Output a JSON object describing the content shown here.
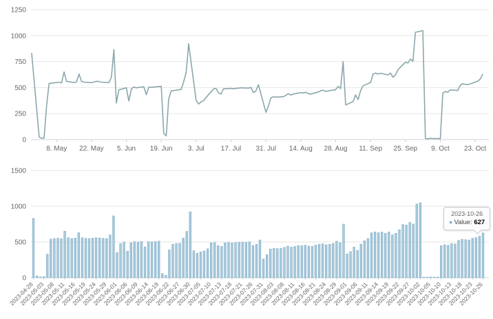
{
  "colors": {
    "series_line": "#8ba7ab",
    "bar_fill": "#a7c9dc",
    "bar_stroke": "#86afc6",
    "grid": "#e6e6e6",
    "axis": "#ccd1d6",
    "label": "#666666",
    "tooltip_border": "#c6ccd2"
  },
  "tooltip": {
    "date": "2023-10-26",
    "marker_icon": "●",
    "value_label": "Value:",
    "value": "627"
  },
  "chart_data": [
    {
      "type": "line",
      "title": "",
      "xlabel": "",
      "ylabel": "",
      "ylim": [
        0,
        1250
      ],
      "yticks": [
        0,
        250,
        500,
        750,
        1000,
        1250
      ],
      "grid": "horizontal",
      "legend": "none",
      "xticks": [
        {
          "date": "2023-05-08",
          "label": "8. May"
        },
        {
          "date": "2023-05-22",
          "label": "22. May"
        },
        {
          "date": "2023-06-05",
          "label": "5. Jun"
        },
        {
          "date": "2023-06-19",
          "label": "19. Jun"
        },
        {
          "date": "2023-07-03",
          "label": "3. Jul"
        },
        {
          "date": "2023-07-17",
          "label": "17. Jul"
        },
        {
          "date": "2023-07-31",
          "label": "31. Jul"
        },
        {
          "date": "2023-08-14",
          "label": "14. Aug"
        },
        {
          "date": "2023-08-28",
          "label": "28. Aug"
        },
        {
          "date": "2023-09-11",
          "label": "11. Sep"
        },
        {
          "date": "2023-09-25",
          "label": "25. Sep"
        },
        {
          "date": "2023-10-09",
          "label": "9. Oct"
        },
        {
          "date": "2023-10-23",
          "label": "23. Oct"
        }
      ],
      "x": [
        "2023-04-28",
        "2023-05-01",
        "2023-05-02",
        "2023-05-03",
        "2023-05-04",
        "2023-05-05",
        "2023-05-08",
        "2023-05-09",
        "2023-05-10",
        "2023-05-11",
        "2023-05-12",
        "2023-05-15",
        "2023-05-16",
        "2023-05-17",
        "2023-05-18",
        "2023-05-19",
        "2023-05-22",
        "2023-05-23",
        "2023-05-24",
        "2023-05-25",
        "2023-05-26",
        "2023-05-29",
        "2023-05-30",
        "2023-05-31",
        "2023-06-01",
        "2023-06-02",
        "2023-06-05",
        "2023-06-06",
        "2023-06-07",
        "2023-06-08",
        "2023-06-09",
        "2023-06-12",
        "2023-06-13",
        "2023-06-14",
        "2023-06-15",
        "2023-06-16",
        "2023-06-19",
        "2023-06-20",
        "2023-06-21",
        "2023-06-22",
        "2023-06-23",
        "2023-06-26",
        "2023-06-27",
        "2023-06-28",
        "2023-06-29",
        "2023-06-30",
        "2023-07-03",
        "2023-07-04",
        "2023-07-05",
        "2023-07-06",
        "2023-07-07",
        "2023-07-10",
        "2023-07-11",
        "2023-07-12",
        "2023-07-13",
        "2023-07-14",
        "2023-07-17",
        "2023-07-18",
        "2023-07-19",
        "2023-07-20",
        "2023-07-21",
        "2023-07-24",
        "2023-07-25",
        "2023-07-26",
        "2023-07-27",
        "2023-07-28",
        "2023-07-31",
        "2023-08-01",
        "2023-08-02",
        "2023-08-03",
        "2023-08-04",
        "2023-08-07",
        "2023-08-08",
        "2023-08-09",
        "2023-08-10",
        "2023-08-11",
        "2023-08-14",
        "2023-08-15",
        "2023-08-16",
        "2023-08-17",
        "2023-08-18",
        "2023-08-21",
        "2023-08-22",
        "2023-08-23",
        "2023-08-24",
        "2023-08-25",
        "2023-08-28",
        "2023-08-29",
        "2023-08-30",
        "2023-08-31",
        "2023-09-01",
        "2023-09-04",
        "2023-09-05",
        "2023-09-06",
        "2023-09-07",
        "2023-09-08",
        "2023-09-11",
        "2023-09-12",
        "2023-09-13",
        "2023-09-14",
        "2023-09-15",
        "2023-09-18",
        "2023-09-19",
        "2023-09-20",
        "2023-09-21",
        "2023-09-22",
        "2023-09-25",
        "2023-09-26",
        "2023-09-27",
        "2023-09-28",
        "2023-09-29",
        "2023-10-02",
        "2023-10-03",
        "2023-10-04",
        "2023-10-05",
        "2023-10-06",
        "2023-10-09",
        "2023-10-10",
        "2023-10-11",
        "2023-10-12",
        "2023-10-13",
        "2023-10-16",
        "2023-10-17",
        "2023-10-18",
        "2023-10-19",
        "2023-10-20",
        "2023-10-23",
        "2023-10-24",
        "2023-10-25",
        "2023-10-26"
      ],
      "values": [
        830,
        25,
        12,
        15,
        330,
        540,
        548,
        552,
        545,
        650,
        560,
        548,
        555,
        630,
        560,
        552,
        548,
        555,
        560,
        558,
        552,
        548,
        600,
        865,
        352,
        478,
        498,
        372,
        488,
        505,
        498,
        508,
        432,
        505,
        502,
        505,
        512,
        60,
        35,
        390,
        468,
        478,
        482,
        555,
        648,
        922,
        378,
        342,
        362,
        375,
        405,
        488,
        492,
        448,
        438,
        488,
        492,
        488,
        492,
        495,
        498,
        495,
        502,
        452,
        468,
        528,
        262,
        322,
        402,
        412,
        408,
        412,
        425,
        442,
        428,
        438,
        452,
        448,
        455,
        442,
        438,
        458,
        468,
        475,
        462,
        468,
        480,
        512,
        490,
        750,
        333,
        365,
        429,
        384,
        470,
        518,
        548,
        628,
        640,
        630,
        638,
        622,
        640,
        600,
        622,
        672,
        744,
        737,
        775,
        752,
        1032,
        1048,
        10,
        8,
        12,
        10,
        9,
        448,
        462,
        455,
        478,
        472,
        522,
        538,
        532,
        528,
        552,
        562,
        582,
        627
      ]
    },
    {
      "type": "bar",
      "title": "",
      "xlabel": "",
      "ylabel": "",
      "ylim": [
        0,
        1500
      ],
      "yticks": [
        0,
        500,
        1000,
        1500
      ],
      "grid": "horizontal",
      "legend": "none",
      "label_every": 3,
      "categories": [
        "2023-04-28",
        "2023-05-01",
        "2023-05-02",
        "2023-05-03",
        "2023-05-04",
        "2023-05-05",
        "2023-05-08",
        "2023-05-09",
        "2023-05-10",
        "2023-05-11",
        "2023-05-12",
        "2023-05-15",
        "2023-05-16",
        "2023-05-17",
        "2023-05-18",
        "2023-05-19",
        "2023-05-22",
        "2023-05-23",
        "2023-05-24",
        "2023-05-25",
        "2023-05-26",
        "2023-05-29",
        "2023-05-30",
        "2023-05-31",
        "2023-06-01",
        "2023-06-02",
        "2023-06-05",
        "2023-06-06",
        "2023-06-07",
        "2023-06-08",
        "2023-06-09",
        "2023-06-12",
        "2023-06-13",
        "2023-06-14",
        "2023-06-15",
        "2023-06-16",
        "2023-06-19",
        "2023-06-20",
        "2023-06-21",
        "2023-06-22",
        "2023-06-23",
        "2023-06-26",
        "2023-06-27",
        "2023-06-28",
        "2023-06-29",
        "2023-06-30",
        "2023-07-03",
        "2023-07-04",
        "2023-07-05",
        "2023-07-06",
        "2023-07-07",
        "2023-07-10",
        "2023-07-11",
        "2023-07-12",
        "2023-07-13",
        "2023-07-14",
        "2023-07-17",
        "2023-07-18",
        "2023-07-19",
        "2023-07-20",
        "2023-07-21",
        "2023-07-24",
        "2023-07-25",
        "2023-07-26",
        "2023-07-27",
        "2023-07-28",
        "2023-07-31",
        "2023-08-01",
        "2023-08-02",
        "2023-08-03",
        "2023-08-04",
        "2023-08-07",
        "2023-08-08",
        "2023-08-09",
        "2023-08-10",
        "2023-08-11",
        "2023-08-14",
        "2023-08-15",
        "2023-08-16",
        "2023-08-17",
        "2023-08-18",
        "2023-08-21",
        "2023-08-22",
        "2023-08-23",
        "2023-08-24",
        "2023-08-25",
        "2023-08-28",
        "2023-08-29",
        "2023-08-30",
        "2023-08-31",
        "2023-09-01",
        "2023-09-04",
        "2023-09-05",
        "2023-09-06",
        "2023-09-07",
        "2023-09-08",
        "2023-09-11",
        "2023-09-12",
        "2023-09-13",
        "2023-09-14",
        "2023-09-15",
        "2023-09-18",
        "2023-09-19",
        "2023-09-20",
        "2023-09-21",
        "2023-09-22",
        "2023-09-25",
        "2023-09-26",
        "2023-09-27",
        "2023-09-28",
        "2023-09-29",
        "2023-10-02",
        "2023-10-03",
        "2023-10-04",
        "2023-10-05",
        "2023-10-06",
        "2023-10-09",
        "2023-10-10",
        "2023-10-11",
        "2023-10-12",
        "2023-10-13",
        "2023-10-16",
        "2023-10-17",
        "2023-10-18",
        "2023-10-19",
        "2023-10-20",
        "2023-10-23",
        "2023-10-24",
        "2023-10-25",
        "2023-10-26"
      ],
      "values": [
        830,
        25,
        12,
        15,
        330,
        540,
        548,
        552,
        545,
        650,
        560,
        548,
        555,
        630,
        560,
        552,
        548,
        555,
        560,
        558,
        552,
        548,
        600,
        865,
        352,
        478,
        498,
        372,
        488,
        505,
        498,
        508,
        432,
        505,
        502,
        505,
        512,
        60,
        35,
        390,
        468,
        478,
        482,
        555,
        648,
        922,
        378,
        342,
        362,
        375,
        405,
        488,
        492,
        448,
        438,
        488,
        492,
        488,
        492,
        495,
        498,
        495,
        502,
        452,
        468,
        528,
        262,
        322,
        402,
        412,
        408,
        412,
        425,
        442,
        428,
        438,
        452,
        448,
        455,
        442,
        438,
        458,
        468,
        475,
        462,
        468,
        480,
        512,
        490,
        750,
        333,
        365,
        429,
        384,
        470,
        518,
        548,
        628,
        640,
        630,
        638,
        622,
        640,
        600,
        622,
        672,
        744,
        737,
        775,
        752,
        1032,
        1048,
        10,
        8,
        12,
        10,
        9,
        448,
        462,
        455,
        478,
        472,
        522,
        538,
        532,
        528,
        552,
        562,
        582,
        627
      ],
      "tooltip": {
        "date": "2023-10-26",
        "value_label": "Value:",
        "value": 627
      }
    }
  ]
}
